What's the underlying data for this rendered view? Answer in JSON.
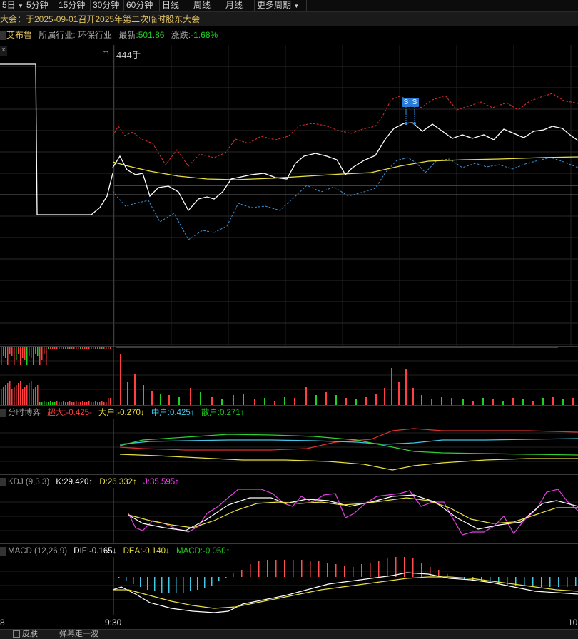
{
  "period_tabs": [
    "5日",
    "5分钟",
    "15分钟",
    "30分钟",
    "60分钟",
    "日线",
    "周线",
    "月线",
    "更多周期"
  ],
  "notice": "大会：于2025-09-01召开2025年第二次临时股东大会",
  "stock": {
    "name": "艾布鲁",
    "industry_label": "所属行业:",
    "industry": "环保行业",
    "latest_label": "最新:",
    "latest": "501.86",
    "change_label": "涨跌:",
    "change": "-1.68%"
  },
  "price_chart": {
    "volume_readout": "444手",
    "signal_label_1": "S",
    "signal_label_2": "S"
  },
  "capital_game": {
    "title": "分时博弈",
    "super_large": "超大:-0.425-",
    "large": "大户:-0.270↓",
    "medium": "中户:0.425↑",
    "retail": "散户:0.271↑"
  },
  "kdj": {
    "title": "KDJ (9,3,3)",
    "k": "K:29.420↑",
    "d": "D:26.332↑",
    "j": "J:35.595↑"
  },
  "macd": {
    "title": "MACD (12,26,9)",
    "dif": "DIF:-0.165↓",
    "dea": "DEA:-0.140↓",
    "macd": "MACD:-0.050↑"
  },
  "time_axis": {
    "left_label": "8",
    "mid_label": "9:30",
    "right_label": "10"
  },
  "bottom_tabs": [
    "皮肤",
    "弹幕走一波"
  ],
  "colors": {
    "up": "#ff4040",
    "down": "#22d022",
    "price_line": "#ffffff",
    "avg_line": "#e8e040",
    "upper_band": "#ff4040",
    "lower_band": "#40a0e0"
  }
}
